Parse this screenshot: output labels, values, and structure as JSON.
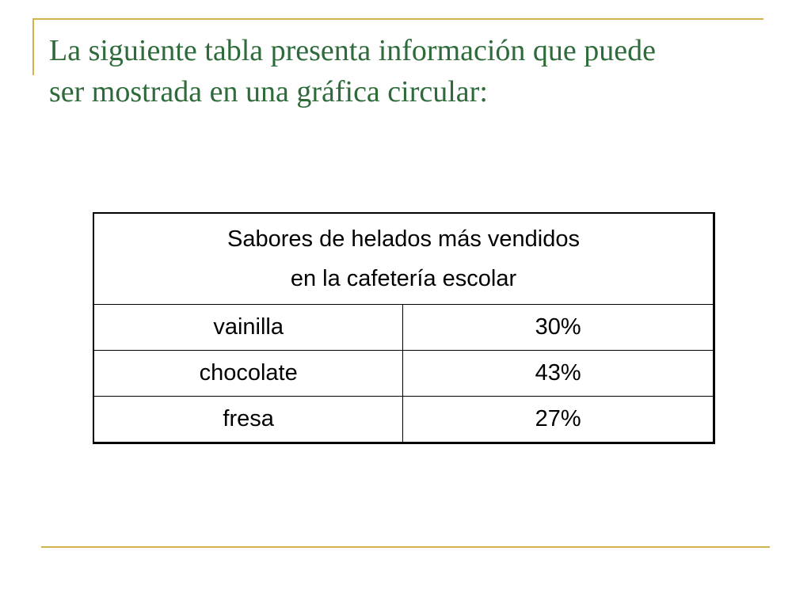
{
  "slide": {
    "title": "La siguiente tabla presenta información que puede\nser mostrada en una gráfica circular:"
  },
  "table": {
    "header": {
      "line1": "Sabores de helados más vendidos",
      "line2": "en la cafetería escolar"
    },
    "rows": [
      {
        "flavor": "vainilla",
        "value": "30%"
      },
      {
        "flavor": "chocolate",
        "value": "43%"
      },
      {
        "flavor": "fresa",
        "value": "27%"
      }
    ]
  },
  "colors": {
    "title": "#2e6b3a",
    "accent_rules": "#d4b24a",
    "table_text": "#000000",
    "background": "#ffffff"
  }
}
